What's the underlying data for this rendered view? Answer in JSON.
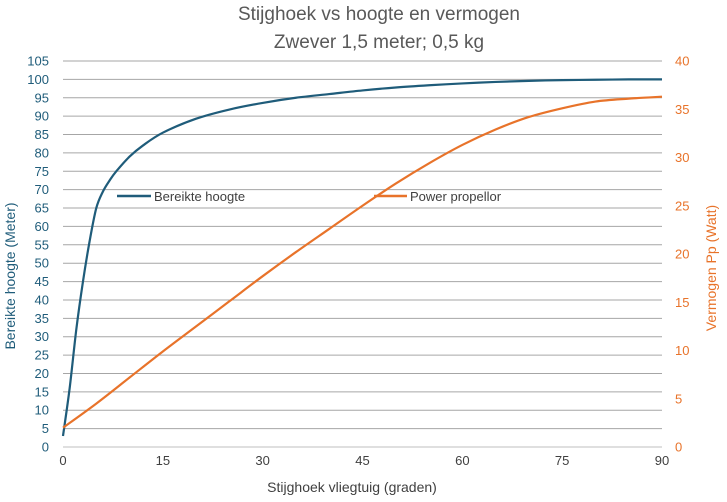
{
  "chart_data": {
    "type": "line",
    "title": "Stijghoek vs hoogte en vermogen",
    "subtitle": "Zwever 1,5 meter; 0,5 kg",
    "xlabel": "Stijghoek vliegtuig (graden)",
    "ylabel": "Bereikte hoogte (Meter)",
    "y2label": "Vermogen Pp (Watt)",
    "xlim": [
      0,
      90
    ],
    "ylim": [
      0,
      105
    ],
    "y2lim": [
      0,
      40
    ],
    "x_ticks": [
      "0",
      "15",
      "30",
      "45",
      "60",
      "75",
      "90"
    ],
    "y_ticks": [
      "0",
      "5",
      "10",
      "15",
      "20",
      "25",
      "30",
      "35",
      "40",
      "45",
      "50",
      "55",
      "60",
      "65",
      "70",
      "75",
      "80",
      "85",
      "90",
      "95",
      "100",
      "105"
    ],
    "y2_ticks": [
      "0",
      "5",
      "10",
      "15",
      "20",
      "25",
      "30",
      "35",
      "40"
    ],
    "grid": true,
    "legend_position": "middle",
    "series": [
      {
        "name": "Bereikte hoogte",
        "axis": "left",
        "color": "#1f5c7a",
        "x": [
          0,
          1,
          2,
          3,
          4,
          5,
          6,
          7,
          8,
          10,
          12,
          15,
          20,
          25,
          30,
          35,
          40,
          45,
          50,
          55,
          60,
          65,
          70,
          75,
          80,
          85,
          90
        ],
        "y": [
          3,
          16,
          32,
          45,
          56,
          65,
          69.5,
          72.5,
          75,
          79,
          82,
          85.5,
          89.3,
          91.8,
          93.6,
          95,
          96,
          97,
          97.8,
          98.4,
          98.9,
          99.3,
          99.6,
          99.8,
          99.9,
          100,
          100
        ]
      },
      {
        "name": "Power propellor",
        "axis": "right",
        "color": "#e8732a",
        "x": [
          0,
          5,
          10,
          15,
          20,
          25,
          30,
          35,
          40,
          45,
          50,
          55,
          60,
          65,
          70,
          75,
          80,
          85,
          90
        ],
        "y": [
          2,
          4.5,
          7.2,
          9.9,
          12.5,
          15.1,
          17.7,
          20.2,
          22.6,
          25,
          27.3,
          29.4,
          31.3,
          32.9,
          34.2,
          35.1,
          35.8,
          36.1,
          36.3
        ]
      }
    ]
  }
}
